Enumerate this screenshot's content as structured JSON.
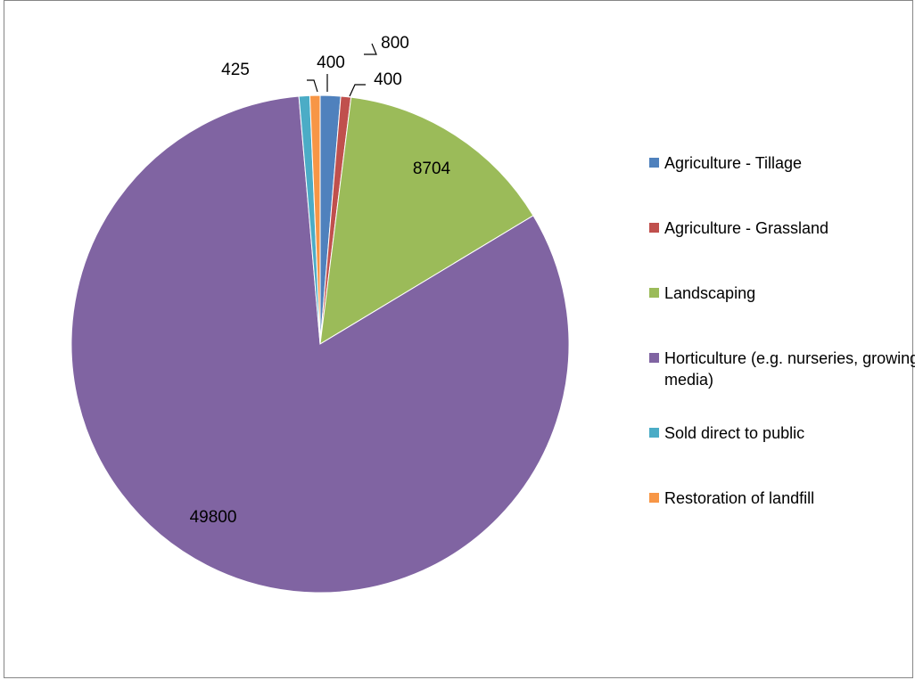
{
  "chart_data": {
    "type": "pie",
    "title": "",
    "legend_position": "right",
    "slices": [
      {
        "label": "Agriculture - Tillage",
        "value": 800,
        "data_label": "800",
        "color": "#4F81BD"
      },
      {
        "label": "Agriculture - Grassland",
        "value": 400,
        "data_label": "400",
        "color": "#C0504D"
      },
      {
        "label": "Landscaping",
        "value": 8704,
        "data_label": "8704",
        "color": "#9BBB59"
      },
      {
        "label": "Horticulture (e.g. nurseries, growing media)",
        "value": 49800,
        "data_label": "49800",
        "color": "#8064A2"
      },
      {
        "label": "Sold direct to public",
        "value": 425,
        "data_label": "425",
        "color": "#4BACC6"
      },
      {
        "label": "Restoration of landfill",
        "value": 400,
        "data_label": "400",
        "color": "#F79646"
      }
    ]
  }
}
